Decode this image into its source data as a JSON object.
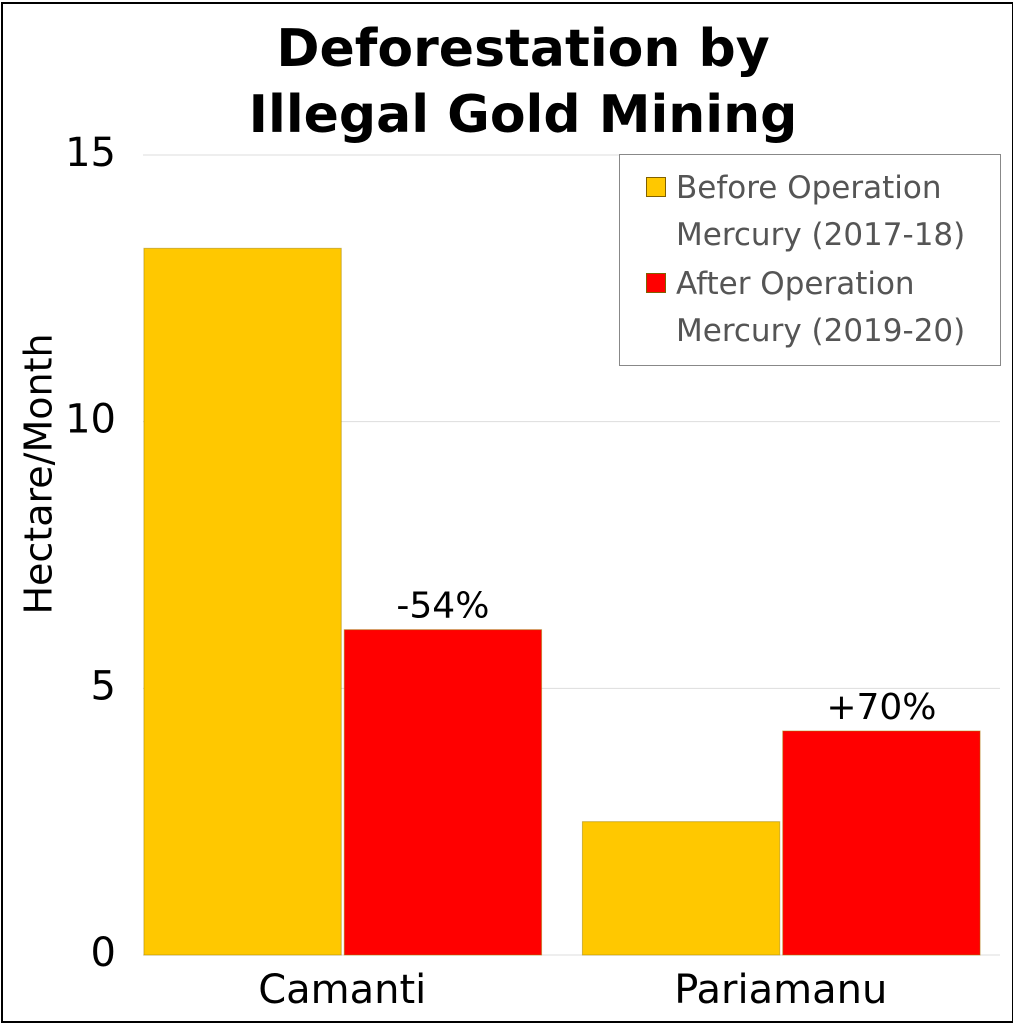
{
  "chart_data": {
    "type": "bar",
    "title": "Deforestation by Illegal Gold Mining",
    "y_label": "Hectare/Month",
    "categories": [
      "Camanti",
      "Pariamanu"
    ],
    "series": [
      {
        "name": "Before Operation Mercury (2017-18)",
        "color": "#ffc800",
        "values": [
          13.25,
          2.5
        ]
      },
      {
        "name": "After Operation Mercury (2019-20)",
        "color": "#ff0000",
        "values": [
          6.1,
          4.2
        ],
        "annotations": [
          "-54%",
          "+70%"
        ]
      }
    ],
    "ylim": [
      0,
      15
    ],
    "yticks": [
      0,
      5,
      10,
      15
    ],
    "grid": true,
    "legend": "upper right"
  }
}
